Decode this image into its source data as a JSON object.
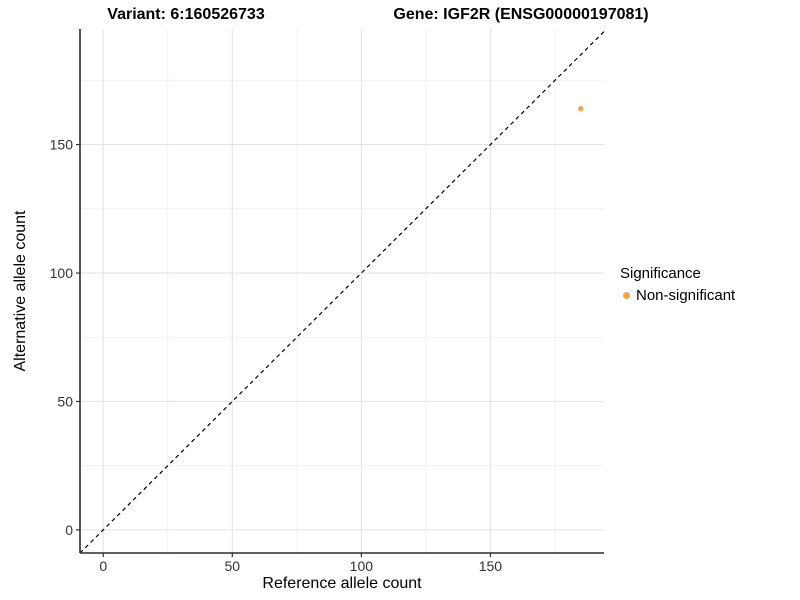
{
  "titles": {
    "variant": "Variant: 6:160526733",
    "gene": "Gene: IGF2R (ENSG00000197081)"
  },
  "axes": {
    "x_label": "Reference allele count",
    "y_label": "Alternative allele count",
    "x_ticks": [
      0,
      50,
      100,
      150
    ],
    "y_ticks": [
      0,
      50,
      100,
      150
    ],
    "x_minor": [
      25,
      75,
      125,
      175
    ],
    "y_minor": [
      25,
      75,
      125,
      175
    ]
  },
  "legend": {
    "title": "Significance",
    "items": [
      {
        "label": "Non-significant",
        "color": "#F9A242"
      }
    ]
  },
  "colors": {
    "point": "#F9A242",
    "grid_major": "#E4E4E4",
    "grid_minor": "#F1F1F1",
    "axis_line": "#2B2B2B",
    "tick_label": "#333333",
    "reference_line": "#000000"
  },
  "chart_data": {
    "type": "scatter",
    "title": "Variant: 6:160526733 | Gene: IGF2R (ENSG00000197081)",
    "xlabel": "Reference allele count",
    "ylabel": "Alternative allele count",
    "xlim": [
      -9,
      194
    ],
    "ylim": [
      -9,
      195
    ],
    "x_ticks": [
      0,
      50,
      100,
      150
    ],
    "y_ticks": [
      0,
      50,
      100,
      150
    ],
    "grid": true,
    "legend_position": "right",
    "series": [
      {
        "name": "Non-significant",
        "color": "#F9A242",
        "points": [
          {
            "x": 185,
            "y": 164
          }
        ]
      }
    ],
    "reference_line": {
      "type": "identity-diagonal",
      "equation": "y = x",
      "style": "dashed",
      "color": "#000000"
    }
  }
}
